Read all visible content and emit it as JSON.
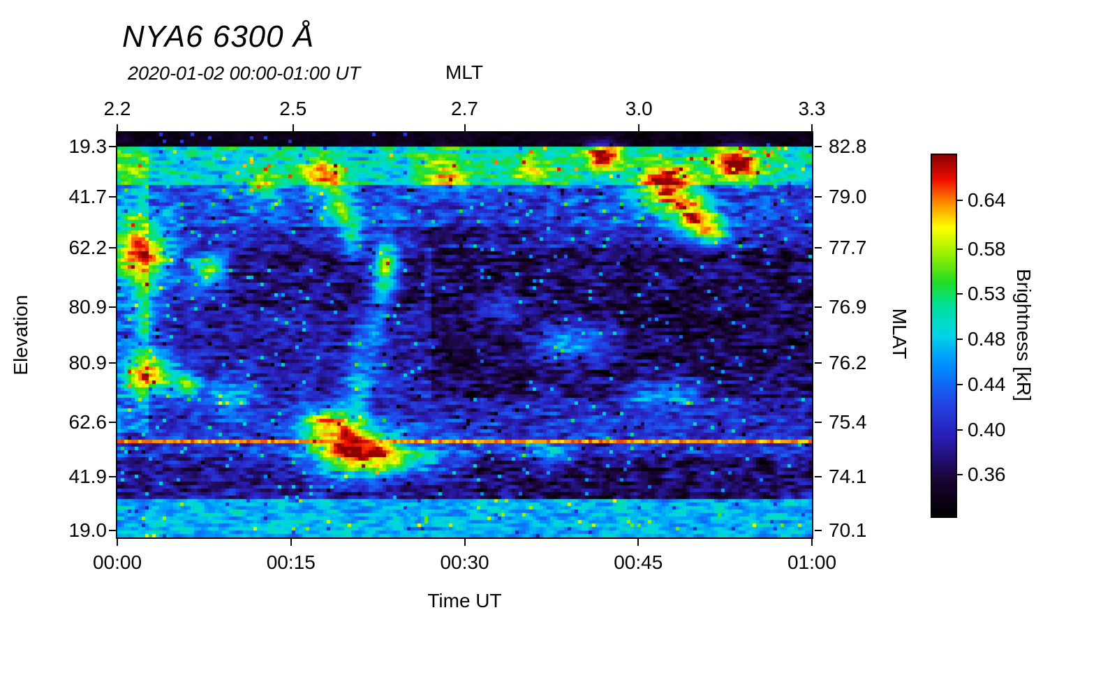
{
  "header": {
    "title": "NYA6 6300 Å",
    "subtitle": "2020-01-02 00:00-01:00 UT"
  },
  "chart_data": {
    "type": "heatmap",
    "title": "NYA6 6300 Å",
    "subtitle": "2020-01-02 00:00-01:00 UT",
    "x_axis_top": {
      "label": "MLT",
      "ticks": [
        "2.2",
        "2.5",
        "2.7",
        "3.0",
        "3.3"
      ],
      "positions": [
        0.0,
        0.253,
        0.5,
        0.751,
        1.0
      ]
    },
    "x_axis_bottom": {
      "label": "Time UT",
      "ticks": [
        "00:00",
        "00:15",
        "00:30",
        "00:45",
        "01:00"
      ],
      "positions": [
        0.0,
        0.25,
        0.5,
        0.75,
        1.0
      ]
    },
    "y_axis_left": {
      "label": "Elevation",
      "ticks": [
        "19.3",
        "41.7",
        "62.2",
        "80.9",
        "80.9",
        "62.6",
        "41.9",
        "19.0"
      ],
      "positions": [
        0.034,
        0.159,
        0.284,
        0.431,
        0.569,
        0.716,
        0.85,
        0.983
      ]
    },
    "y_axis_right": {
      "label": "MLAT",
      "ticks": [
        "82.8",
        "79.0",
        "77.7",
        "76.9",
        "76.2",
        "75.4",
        "74.1",
        "70.1"
      ],
      "positions": [
        0.034,
        0.159,
        0.284,
        0.431,
        0.569,
        0.716,
        0.85,
        0.983
      ]
    },
    "colorbar": {
      "label": "Brightness [kR]",
      "ticks": [
        "0.64",
        "0.58",
        "0.53",
        "0.48",
        "0.44",
        "0.40",
        "0.36"
      ],
      "positions": [
        0.125,
        0.26,
        0.385,
        0.51,
        0.635,
        0.76,
        0.885
      ]
    },
    "colormap": [
      [
        0.0,
        "#000000"
      ],
      [
        0.1,
        "#1a0433"
      ],
      [
        0.22,
        "#2a1db8"
      ],
      [
        0.32,
        "#1f49e8"
      ],
      [
        0.42,
        "#0090ff"
      ],
      [
        0.5,
        "#00d4e8"
      ],
      [
        0.58,
        "#00e0a0"
      ],
      [
        0.65,
        "#22dd22"
      ],
      [
        0.73,
        "#a0f000"
      ],
      [
        0.8,
        "#ffff00"
      ],
      [
        0.87,
        "#ff8800"
      ],
      [
        0.93,
        "#f01000"
      ],
      [
        1.0,
        "#8b0000"
      ]
    ],
    "grid": {
      "cols": 199,
      "rows": 116,
      "cell": 5,
      "seed": 1234
    },
    "bands": [
      [
        0.0,
        0.03,
        0.05,
        0.06
      ],
      [
        0.03,
        0.125,
        0.52,
        0.2
      ],
      [
        0.125,
        0.23,
        0.32,
        0.22
      ],
      [
        0.23,
        0.42,
        0.23,
        0.2
      ],
      [
        0.42,
        0.6,
        0.21,
        0.19
      ],
      [
        0.6,
        0.705,
        0.24,
        0.2
      ],
      [
        0.705,
        0.8,
        0.27,
        0.21
      ],
      [
        0.8,
        0.91,
        0.19,
        0.2
      ],
      [
        0.91,
        1.001,
        0.46,
        0.16
      ]
    ],
    "shade_regions": [
      [
        0.45,
        1.0,
        0.28,
        0.66,
        -0.09
      ],
      [
        0.52,
        0.95,
        0.8,
        0.905,
        -0.05
      ],
      [
        0.0,
        0.045,
        0.04,
        0.74,
        0.12
      ],
      [
        0.16,
        0.44,
        0.29,
        0.44,
        -0.06
      ],
      [
        0.42,
        0.62,
        0.13,
        0.27,
        -0.05
      ]
    ],
    "features": [
      [
        0.035,
        0.295,
        0.03,
        0.055,
        0.62
      ],
      [
        0.13,
        0.335,
        0.018,
        0.028,
        0.45
      ],
      [
        0.045,
        0.595,
        0.028,
        0.038,
        0.58
      ],
      [
        0.1,
        0.625,
        0.014,
        0.02,
        0.35
      ],
      [
        0.385,
        0.335,
        0.013,
        0.05,
        0.55
      ],
      [
        0.335,
        0.785,
        0.042,
        0.045,
        0.68
      ],
      [
        0.3,
        0.715,
        0.03,
        0.03,
        0.42
      ],
      [
        0.405,
        0.81,
        0.045,
        0.028,
        0.38
      ],
      [
        0.79,
        0.135,
        0.028,
        0.04,
        0.62
      ],
      [
        0.835,
        0.205,
        0.022,
        0.035,
        0.55
      ],
      [
        0.895,
        0.075,
        0.026,
        0.028,
        0.55
      ],
      [
        0.7,
        0.055,
        0.02,
        0.022,
        0.5
      ],
      [
        0.858,
        0.245,
        0.018,
        0.022,
        0.4
      ],
      [
        0.29,
        0.1,
        0.02,
        0.03,
        0.33
      ],
      [
        0.315,
        0.17,
        0.015,
        0.04,
        0.32
      ],
      [
        0.335,
        0.245,
        0.013,
        0.045,
        0.3
      ],
      [
        0.47,
        0.1,
        0.03,
        0.035,
        0.28
      ],
      [
        0.655,
        0.52,
        0.045,
        0.035,
        0.3
      ],
      [
        0.79,
        0.645,
        0.035,
        0.025,
        0.28
      ],
      [
        0.37,
        0.5,
        0.015,
        0.06,
        0.22
      ],
      [
        0.345,
        0.625,
        0.015,
        0.06,
        0.22
      ],
      [
        0.16,
        0.655,
        0.025,
        0.03,
        0.26
      ],
      [
        0.62,
        0.8,
        0.03,
        0.022,
        0.22
      ],
      [
        0.555,
        0.43,
        0.025,
        0.025,
        0.18
      ],
      [
        0.04,
        0.45,
        0.015,
        0.06,
        0.25
      ],
      [
        0.21,
        0.13,
        0.02,
        0.03,
        0.25
      ],
      [
        0.6,
        0.09,
        0.03,
        0.03,
        0.22
      ]
    ],
    "artifact_line": {
      "y": 0.764,
      "level": 0.86
    }
  }
}
